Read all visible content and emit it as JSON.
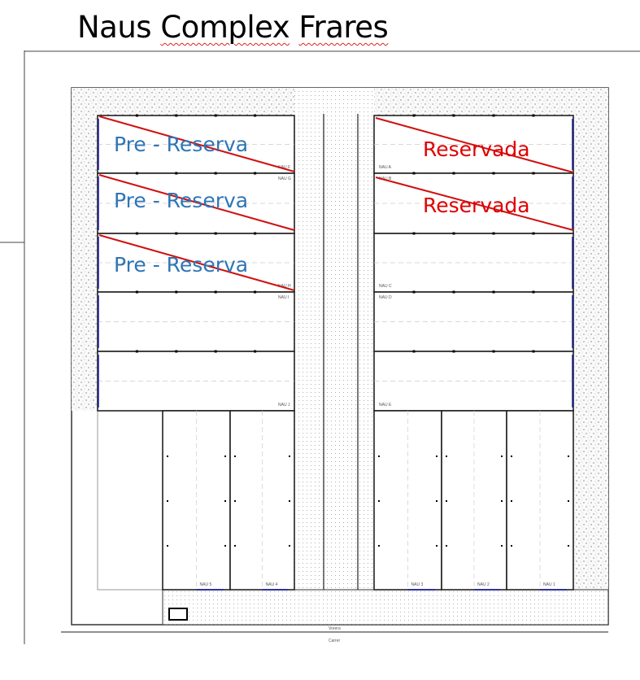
{
  "title": {
    "word1": "Naus",
    "word2": "Complex",
    "word3": "Frares"
  },
  "annotations": {
    "pre_reserva": "Pre - Reserva",
    "reservada": "Reservada"
  },
  "units_left": [
    "NAU F",
    "NAU G",
    "NAU H",
    "NAU I",
    "NAU J"
  ],
  "units_right": [
    "NAU A",
    "NAU B",
    "NAU C",
    "NAU D",
    "NAU E"
  ],
  "units_bottom": [
    "NAU 5",
    "NAU 4",
    "NAU 3",
    "NAU 2",
    "NAU 1"
  ],
  "street": {
    "sidewalk": "Vorera",
    "street": "Carrer"
  },
  "status": {
    "NAU F": "Pre - Reserva",
    "NAU G": "Pre - Reserva",
    "NAU H": "Pre - Reserva",
    "NAU A": "Reservada",
    "NAU B": "Reservada"
  },
  "colors": {
    "pre_reserva": "#2e75b6",
    "reservada": "#e00000",
    "strike": "#d01010",
    "door": "#1a1aa8"
  }
}
